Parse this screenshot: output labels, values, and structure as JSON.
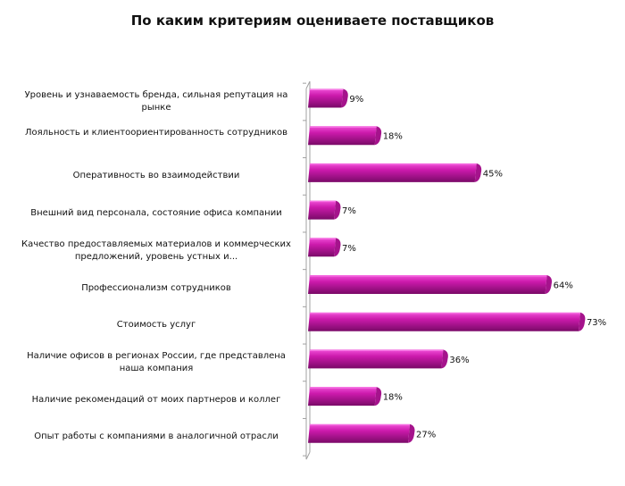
{
  "chart_data": {
    "type": "bar",
    "orientation": "horizontal",
    "title": "По каким критериям оцениваете поставщиков",
    "categories": [
      "Уровень и узнаваемость бренда, сильная репутация на рынке",
      "Лояльность и клиентоориентированность сотрудников",
      "Оперативность во взаимодействии",
      "Внешний вид персонала, состояние офиса компании",
      "Качество предоставляемых материалов и коммерческих предложений, уровень устных и...",
      "Профессионализм сотрудников",
      "Стоимость услуг",
      "Наличие офисов в регионах России, где представлена наша компания",
      "Наличие рекомендаций от моих партнеров и коллег",
      "Опыт работы с компаниями в аналогичной отрасли"
    ],
    "values": [
      9,
      18,
      45,
      7,
      7,
      64,
      73,
      36,
      18,
      27
    ],
    "value_labels": [
      "9%",
      "18%",
      "45%",
      "7%",
      "7%",
      "64%",
      "73%",
      "36%",
      "18%",
      "27%"
    ],
    "xlim": [
      0,
      75
    ],
    "grid": false,
    "legend": "none",
    "colors": {
      "bar_top": "#f050d8",
      "bar_mid": "#cc1aac",
      "bar_bottom": "#7a0a68",
      "bar_cap": "#a5138c",
      "axis": "#a0a0a0"
    }
  }
}
